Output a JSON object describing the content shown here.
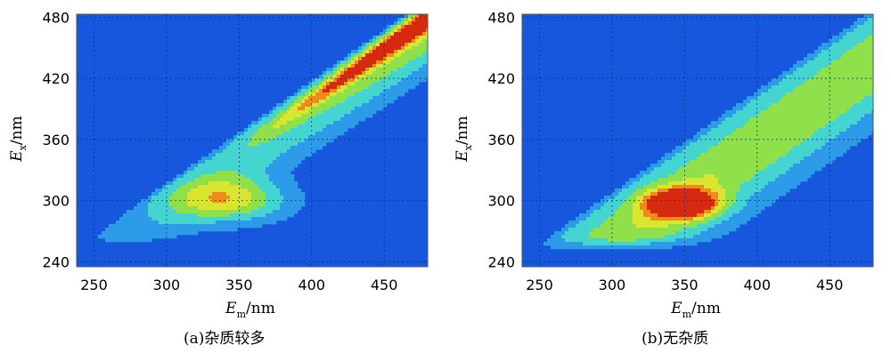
{
  "chart_data": [
    {
      "type": "heatmap",
      "title": "",
      "caption": "(a)杂质较多",
      "xlabel": {
        "main": "E",
        "sub": "m",
        "unit": "/nm"
      },
      "ylabel": {
        "main": "E",
        "sub": "x",
        "unit": "/nm"
      },
      "xlim": [
        238,
        480
      ],
      "ylim": [
        235,
        483
      ],
      "x_ticks": [
        "250",
        "300",
        "350",
        "400",
        "450"
      ],
      "y_ticks": [
        "240",
        "300",
        "360",
        "420",
        "480"
      ],
      "grid": true,
      "colormap": [
        "#1757dd",
        "#2d9be8",
        "#45d5d0",
        "#8fe04b",
        "#d9e52e",
        "#ef8a1c",
        "#d62a10"
      ],
      "peaks": [
        {
          "em": 415,
          "ex": 415,
          "level": 1.0
        },
        {
          "em": 445,
          "ex": 455,
          "level": 0.95
        },
        {
          "em": 365,
          "ex": 360,
          "level": 0.85
        },
        {
          "em": 325,
          "ex": 305,
          "level": 0.6
        }
      ]
    },
    {
      "type": "heatmap",
      "title": "",
      "caption": "(b)无杂质",
      "xlabel": {
        "main": "E",
        "sub": "m",
        "unit": "/nm"
      },
      "ylabel": {
        "main": "E",
        "sub": "x",
        "unit": "/nm"
      },
      "xlim": [
        238,
        480
      ],
      "ylim": [
        235,
        483
      ],
      "x_ticks": [
        "250",
        "300",
        "350",
        "400",
        "450"
      ],
      "y_ticks": [
        "240",
        "300",
        "360",
        "420",
        "480"
      ],
      "grid": true,
      "colormap": [
        "#1757dd",
        "#2d9be8",
        "#45d5d0",
        "#8fe04b",
        "#d9e52e",
        "#ef8a1c",
        "#d62a10"
      ],
      "peaks": [
        {
          "em": 348,
          "ex": 297,
          "level": 1.0
        },
        {
          "em": 390,
          "ex": 350,
          "level": 0.55
        },
        {
          "em": 440,
          "ex": 430,
          "level": 0.45
        }
      ]
    }
  ]
}
